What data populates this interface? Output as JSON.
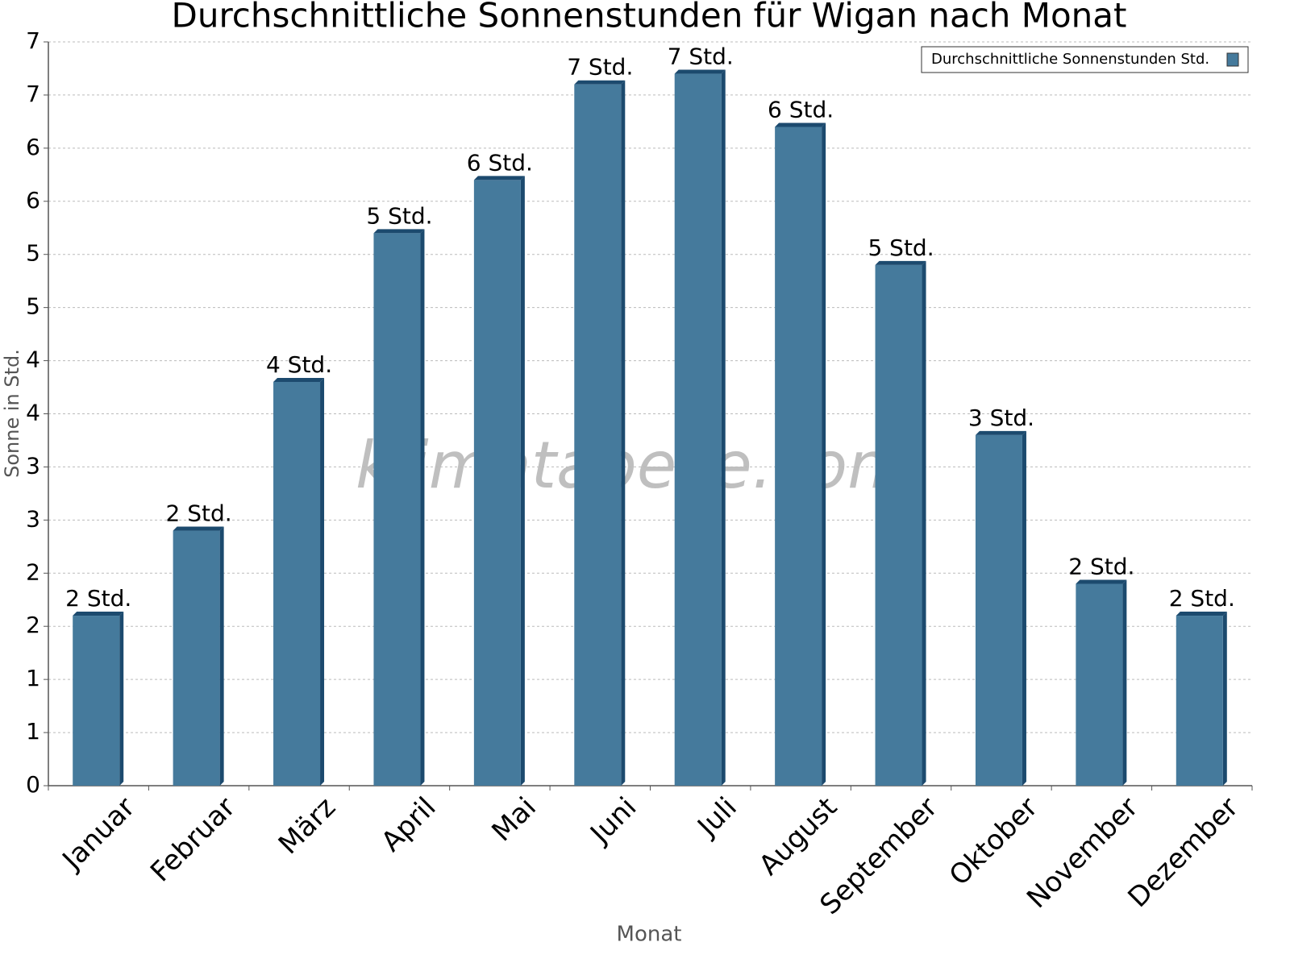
{
  "chart_data": {
    "type": "bar",
    "title": "Durchschnittliche Sonnenstunden für Wigan nach Monat",
    "x_label": "Monat",
    "y_label": "Sonne in Std.",
    "watermark": "klimatabelle.com",
    "categories": [
      "Januar",
      "Februar",
      "März",
      "April",
      "Mai",
      "Juni",
      "Juli",
      "August",
      "September",
      "Oktober",
      "November",
      "Dezember"
    ],
    "series": [
      {
        "name": "Durchschnittliche Sonnenstunden Std.",
        "color": "#457a9c",
        "values": [
          1.6,
          2.4,
          3.8,
          5.2,
          5.7,
          6.6,
          6.7,
          6.2,
          4.9,
          3.3,
          1.9,
          1.6
        ],
        "value_labels": [
          "2 Std.",
          "2 Std.",
          "4 Std.",
          "5 Std.",
          "6 Std.",
          "7 Std.",
          "7 Std.",
          "6 Std.",
          "5 Std.",
          "3 Std.",
          "2 Std.",
          "2 Std."
        ]
      }
    ],
    "ylim": [
      0,
      7
    ],
    "yticks": [
      0,
      {
        "value": 0.5,
        "label": "1"
      },
      1,
      {
        "value": 1.5,
        "label": "2"
      },
      2,
      {
        "value": 2.5,
        "label": "3"
      },
      3,
      {
        "value": 3.5,
        "label": "4"
      },
      4,
      {
        "value": 4.5,
        "label": "5"
      },
      5,
      {
        "value": 5.5,
        "label": "6"
      },
      6,
      {
        "value": 6.5,
        "label": "7"
      },
      7
    ],
    "grid": true,
    "legend": "top-right"
  }
}
